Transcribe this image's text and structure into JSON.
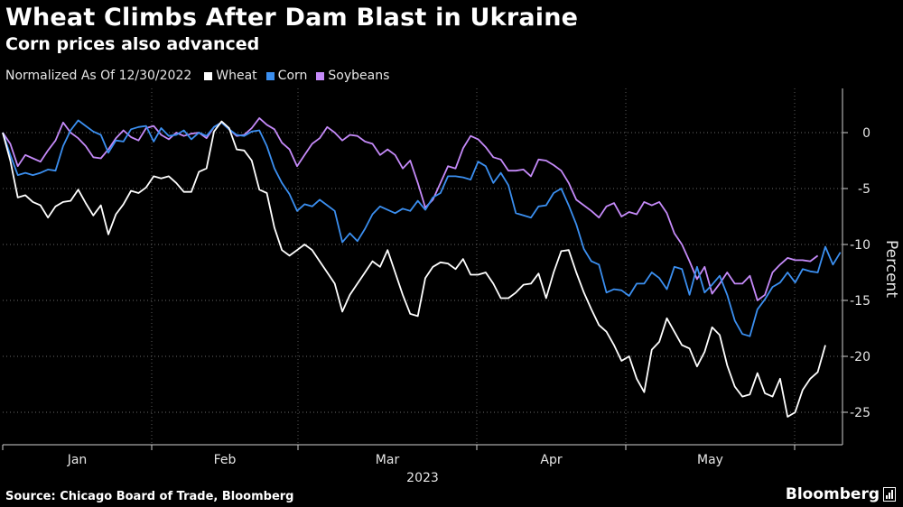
{
  "header": {
    "title": "Wheat Climbs After Dam Blast in Ukraine",
    "subtitle": "Corn prices also advanced"
  },
  "legend": {
    "normalized_label": "Normalized As Of 12/30/2022",
    "items": [
      {
        "label": "Wheat",
        "color": "#ffffff"
      },
      {
        "label": "Corn",
        "color": "#3b8ff0"
      },
      {
        "label": "Soybeans",
        "color": "#c58af9"
      }
    ]
  },
  "footer": {
    "source": "Source: Chicago Board of Trade, Bloomberg",
    "brand": "Bloomberg"
  },
  "chart_data": {
    "type": "line",
    "title": "Wheat Climbs After Dam Blast in Ukraine",
    "ylabel": "Percent",
    "xlabel": "2023",
    "ylim": [
      -27.5,
      4
    ],
    "yticks": [
      0,
      -5,
      -10,
      -15,
      -20,
      -25
    ],
    "month_labels": [
      "Jan",
      "Feb",
      "Mar",
      "Apr",
      "May"
    ],
    "year_label": "2023",
    "grid": true,
    "series": [
      {
        "name": "Wheat",
        "color": "#ffffff",
        "values": [
          0,
          -2.5,
          -5.8,
          -5.6,
          -6.2,
          -6.5,
          -7.6,
          -6.6,
          -6.2,
          -6.1,
          -5.1,
          -6.3,
          -7.4,
          -6.5,
          -9.1,
          -7.3,
          -6.4,
          -5.2,
          -5.4,
          -4.9,
          -3.9,
          -4.1,
          -3.9,
          -4.5,
          -5.3,
          -5.3,
          -3.5,
          -3.2,
          0.1,
          1.0,
          0.4,
          -1.5,
          -1.6,
          -2.5,
          -5.1,
          -5.4,
          -8.5,
          -10.5,
          -11.0,
          -10.5,
          -10.0,
          -10.5,
          -11.5,
          -12.5,
          -13.5,
          -16.0,
          -14.5,
          -13.5,
          -12.5,
          -11.5,
          -12.0,
          -10.5,
          -12.5,
          -14.5,
          -16.2,
          -16.4,
          -13.0,
          -12.0,
          -11.6,
          -11.7,
          -12.2,
          -11.3,
          -12.7,
          -12.7,
          -12.5,
          -13.5,
          -14.8,
          -14.8,
          -14.3,
          -13.6,
          -13.5,
          -12.6,
          -14.8,
          -12.5,
          -10.6,
          -10.5,
          -12.5,
          -14.3,
          -15.8,
          -17.2,
          -17.8,
          -19.0,
          -20.4,
          -20.0,
          -22.0,
          -23.2,
          -19.4,
          -18.7,
          -16.6,
          -17.8,
          -19.0,
          -19.3,
          -20.9,
          -19.6,
          -17.4,
          -18.1,
          -20.8,
          -22.7,
          -23.6,
          -23.4,
          -21.5,
          -23.3,
          -23.6,
          -22.0,
          -25.4,
          -25.0,
          -23.0,
          -22.0,
          -21.4,
          -19.0
        ]
      },
      {
        "name": "Corn",
        "color": "#3b8ff0",
        "values": [
          0,
          -2.0,
          -3.8,
          -3.6,
          -3.8,
          -3.6,
          -3.3,
          -3.4,
          -1.2,
          0.2,
          1.1,
          0.6,
          0.1,
          -0.2,
          -1.8,
          -0.7,
          -0.8,
          0.3,
          0.5,
          0.6,
          -0.8,
          0.4,
          -0.3,
          -0.2,
          0.2,
          -0.6,
          0.0,
          -0.3,
          0.5,
          0.9,
          0.3,
          -0.2,
          -0.3,
          0.1,
          0.2,
          -1.2,
          -3.2,
          -4.5,
          -5.5,
          -7.0,
          -6.4,
          -6.6,
          -6.0,
          -6.5,
          -7.0,
          -9.8,
          -9.0,
          -9.7,
          -8.6,
          -7.3,
          -6.6,
          -6.9,
          -7.2,
          -6.8,
          -7.0,
          -6.1,
          -6.9,
          -5.8,
          -5.4,
          -3.9,
          -3.9,
          -4.0,
          -4.2,
          -2.6,
          -3.0,
          -4.5,
          -3.6,
          -4.7,
          -7.2,
          -7.4,
          -7.6,
          -6.6,
          -6.5,
          -5.4,
          -5.0,
          -6.5,
          -8.2,
          -10.4,
          -11.5,
          -11.8,
          -14.3,
          -14.0,
          -14.1,
          -14.6,
          -13.5,
          -13.5,
          -12.5,
          -13.0,
          -14.0,
          -12.0,
          -12.2,
          -14.5,
          -12.0,
          -14.3,
          -13.6,
          -12.8,
          -14.5,
          -16.8,
          -18.0,
          -18.2,
          -15.8,
          -14.9,
          -13.8,
          -13.4,
          -12.5,
          -13.4,
          -12.2,
          -12.4,
          -12.5,
          -10.2,
          -11.8,
          -10.7
        ]
      },
      {
        "name": "Soybeans",
        "color": "#c58af9",
        "values": [
          0,
          -1.0,
          -3.0,
          -2.0,
          -2.3,
          -2.6,
          -1.6,
          -0.7,
          0.9,
          0.0,
          -0.5,
          -1.2,
          -2.2,
          -2.3,
          -1.5,
          -0.5,
          0.2,
          -0.4,
          -0.7,
          0.4,
          0.6,
          -0.2,
          -0.6,
          0.0,
          -0.3,
          -0.1,
          0.0,
          -0.5,
          0.5,
          0.9,
          0.3,
          -0.3,
          -0.2,
          0.4,
          1.3,
          0.7,
          0.3,
          -0.9,
          -1.5,
          -3.0,
          -2.0,
          -1.0,
          -0.5,
          0.5,
          0.0,
          -0.7,
          -0.2,
          -0.3,
          -0.8,
          -1.0,
          -2.0,
          -1.5,
          -2.0,
          -3.2,
          -2.5,
          -4.5,
          -6.7,
          -6.0,
          -4.5,
          -3.0,
          -3.2,
          -1.4,
          -0.3,
          -0.6,
          -1.3,
          -2.2,
          -2.4,
          -3.4,
          -3.4,
          -3.3,
          -3.9,
          -2.4,
          -2.5,
          -2.9,
          -3.4,
          -4.5,
          -6.0,
          -6.5,
          -7.0,
          -7.6,
          -6.6,
          -6.3,
          -7.5,
          -7.1,
          -7.3,
          -6.2,
          -6.5,
          -6.2,
          -7.2,
          -9.0,
          -10.0,
          -11.5,
          -13.1,
          -12.0,
          -14.4,
          -13.5,
          -12.5,
          -13.5,
          -13.5,
          -12.8,
          -15.0,
          -14.5,
          -12.5,
          -11.8,
          -11.2,
          -11.4,
          -11.4,
          -11.5,
          -11.0
        ]
      }
    ]
  }
}
